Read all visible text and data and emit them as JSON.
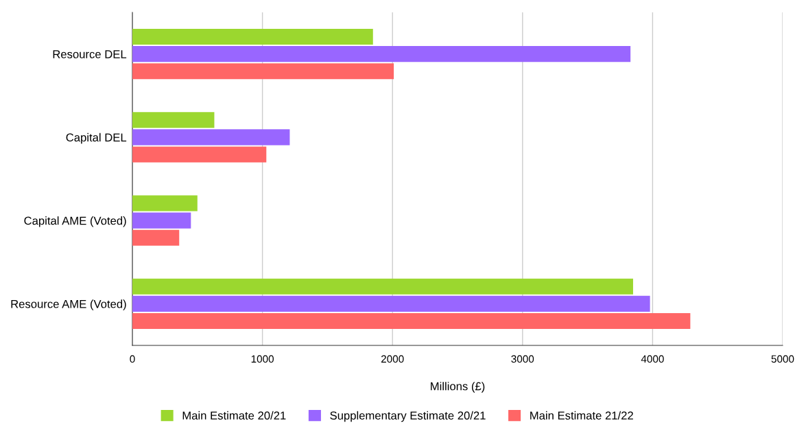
{
  "chart_data": {
    "type": "bar",
    "orientation": "horizontal",
    "xlabel": "Millions (£)",
    "categories": [
      "Resource DEL",
      "Capital DEL",
      "Capital AME (Voted)",
      "Resource AME (Voted)"
    ],
    "series": [
      {
        "name": "Main Estimate 20/21",
        "color": "#9bd72f",
        "values": [
          1850,
          630,
          500,
          3850
        ]
      },
      {
        "name": "Supplementary Estimate 20/21",
        "color": "#9966ff",
        "values": [
          3830,
          1210,
          450,
          3980
        ]
      },
      {
        "name": "Main Estimate 21/22",
        "color": "#ff6666",
        "values": [
          2010,
          1030,
          360,
          4290
        ]
      }
    ],
    "xlim": [
      0,
      5000
    ],
    "xticks": [
      0,
      1000,
      2000,
      3000,
      4000,
      5000
    ],
    "grid": "x",
    "legend": "bottom"
  }
}
